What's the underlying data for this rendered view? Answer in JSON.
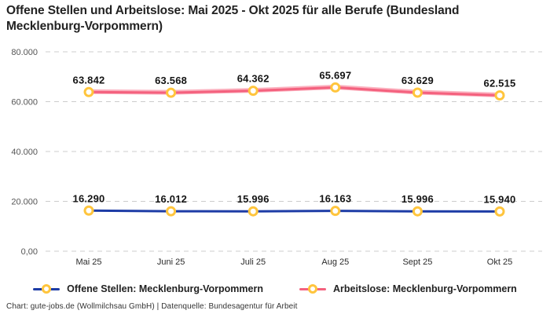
{
  "header": {
    "title": "Offene Stellen und Arbeitslose: Mai 2025 - Okt 2025 für alle Berufe (Bundesland Mecklenburg-Vorpommern)"
  },
  "footer": {
    "credit": "Chart: gute-jobs.de (Wollmilchsau GmbH) | Datenquelle: Bundesagentur für Arbeit"
  },
  "chart_data": {
    "type": "line",
    "title": "Offene Stellen und Arbeitslose: Mai 2025 - Okt 2025 für alle Berufe (Bundesland Mecklenburg-Vorpommern)",
    "categories": [
      "Mai 25",
      "Juni 25",
      "Juli 25",
      "Aug 25",
      "Sept 25",
      "Okt 25"
    ],
    "series": [
      {
        "id": "offene-stellen",
        "name": "Offene Stellen: Mecklenburg-Vorpommern",
        "values": [
          16290,
          16012,
          15996,
          16163,
          15996,
          15940
        ],
        "labels": [
          "16.290",
          "16.012",
          "15.996",
          "16.163",
          "15.996",
          "15.940"
        ],
        "color": "#1d3ca6"
      },
      {
        "id": "arbeitslose",
        "name": "Arbeitslose: Mecklenburg-Vorpommern",
        "values": [
          63842,
          63568,
          64362,
          65697,
          63629,
          62515
        ],
        "labels": [
          "63.842",
          "63.568",
          "64.362",
          "65.697",
          "63.629",
          "62.515"
        ],
        "color": "#f4617e",
        "highlight_color": "#fbb0be"
      }
    ],
    "y_ticks": [
      {
        "value": 0,
        "label": "0,00"
      },
      {
        "value": 20000,
        "label": "20.000"
      },
      {
        "value": 40000,
        "label": "40.000"
      },
      {
        "value": 60000,
        "label": "60.000"
      },
      {
        "value": 80000,
        "label": "80.000"
      }
    ],
    "xlabel": "",
    "ylabel": "",
    "ylim": [
      0,
      80000
    ],
    "grid": "horizontal-dashed",
    "legend_position": "bottom",
    "marker": {
      "ring_color": "#ffc53d",
      "fill_color": "#ffffff"
    }
  }
}
